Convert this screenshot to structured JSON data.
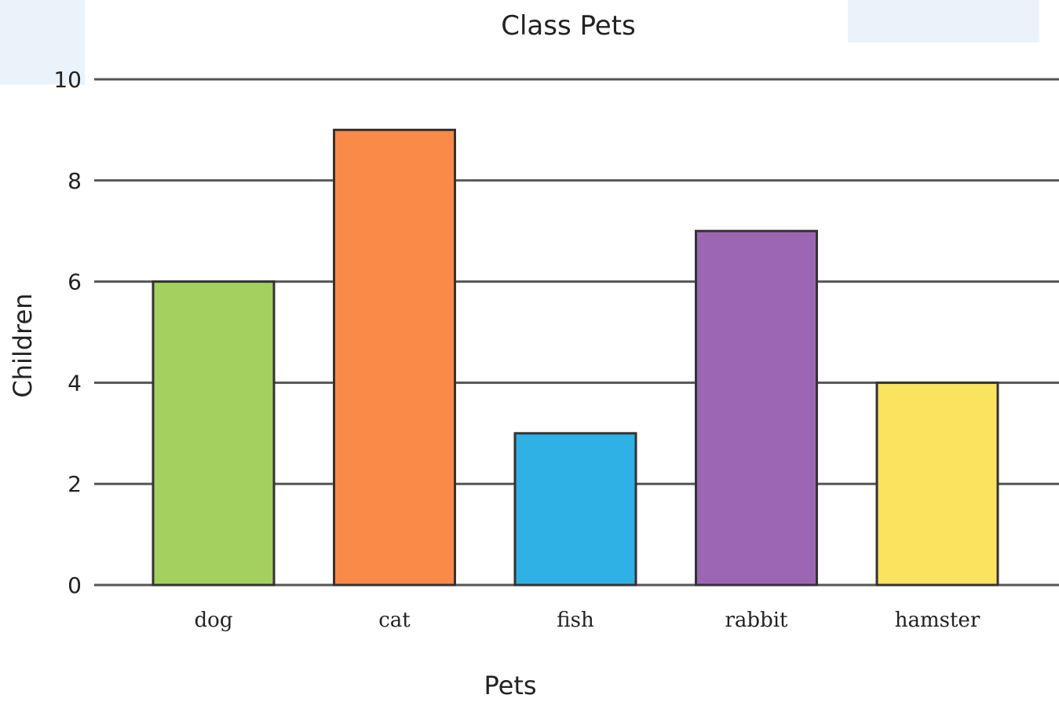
{
  "chart_data": {
    "type": "bar",
    "title": "Class Pets",
    "xlabel": "Pets",
    "ylabel": "Children",
    "categories": [
      "dog",
      "cat",
      "fish",
      "rabbit",
      "hamster"
    ],
    "values": [
      6,
      9,
      3,
      7,
      4
    ],
    "colors": [
      "#a4d15e",
      "#f98a47",
      "#2fb1e6",
      "#9d66b5",
      "#fae35f"
    ],
    "ylim": [
      0,
      10
    ],
    "yticks": [
      "0",
      "2",
      "4",
      "6",
      "8",
      "10"
    ],
    "grid": true
  }
}
